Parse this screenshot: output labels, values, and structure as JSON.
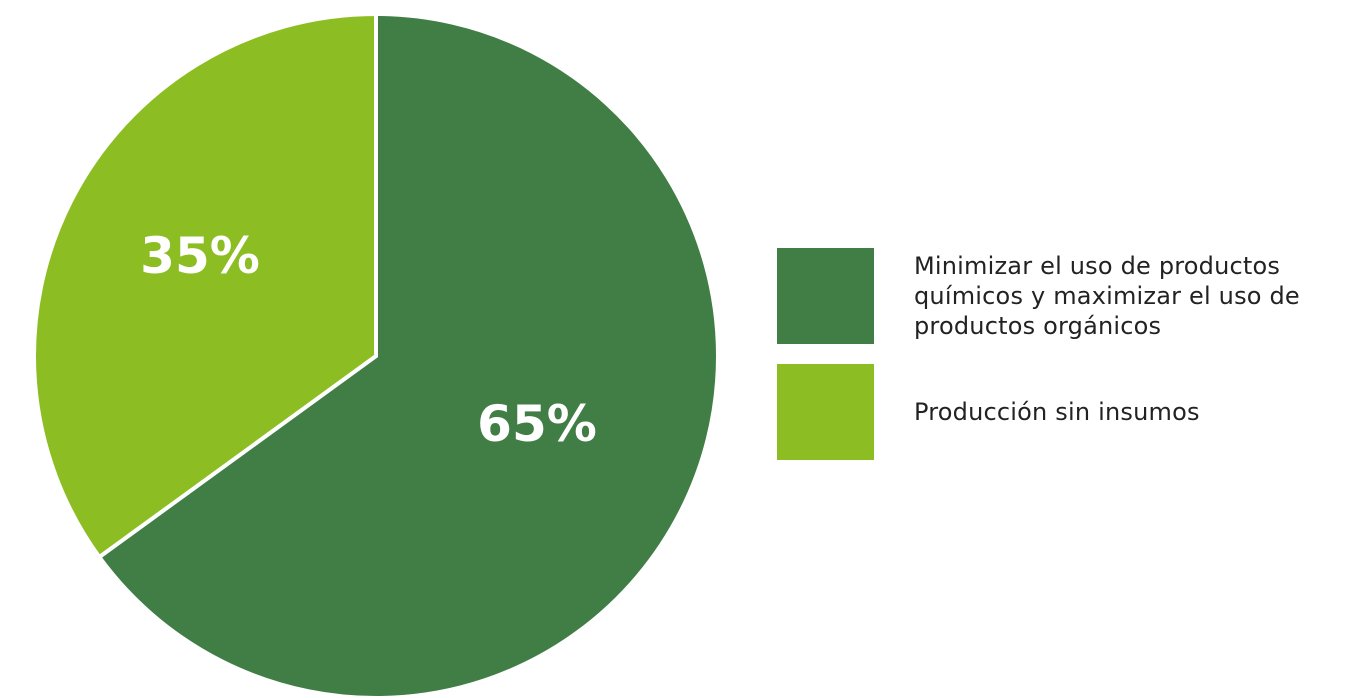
{
  "chart_data": {
    "type": "pie",
    "slices": [
      {
        "label": "Minimizar el uso de productos químicos y maximizar el uso de productos orgánicos",
        "value": 65,
        "display": "65%",
        "color": "#417e46"
      },
      {
        "label": "Producción sin insumos",
        "value": 35,
        "display": "35%",
        "color": "#8cbd22"
      }
    ],
    "legend_position": "right"
  }
}
